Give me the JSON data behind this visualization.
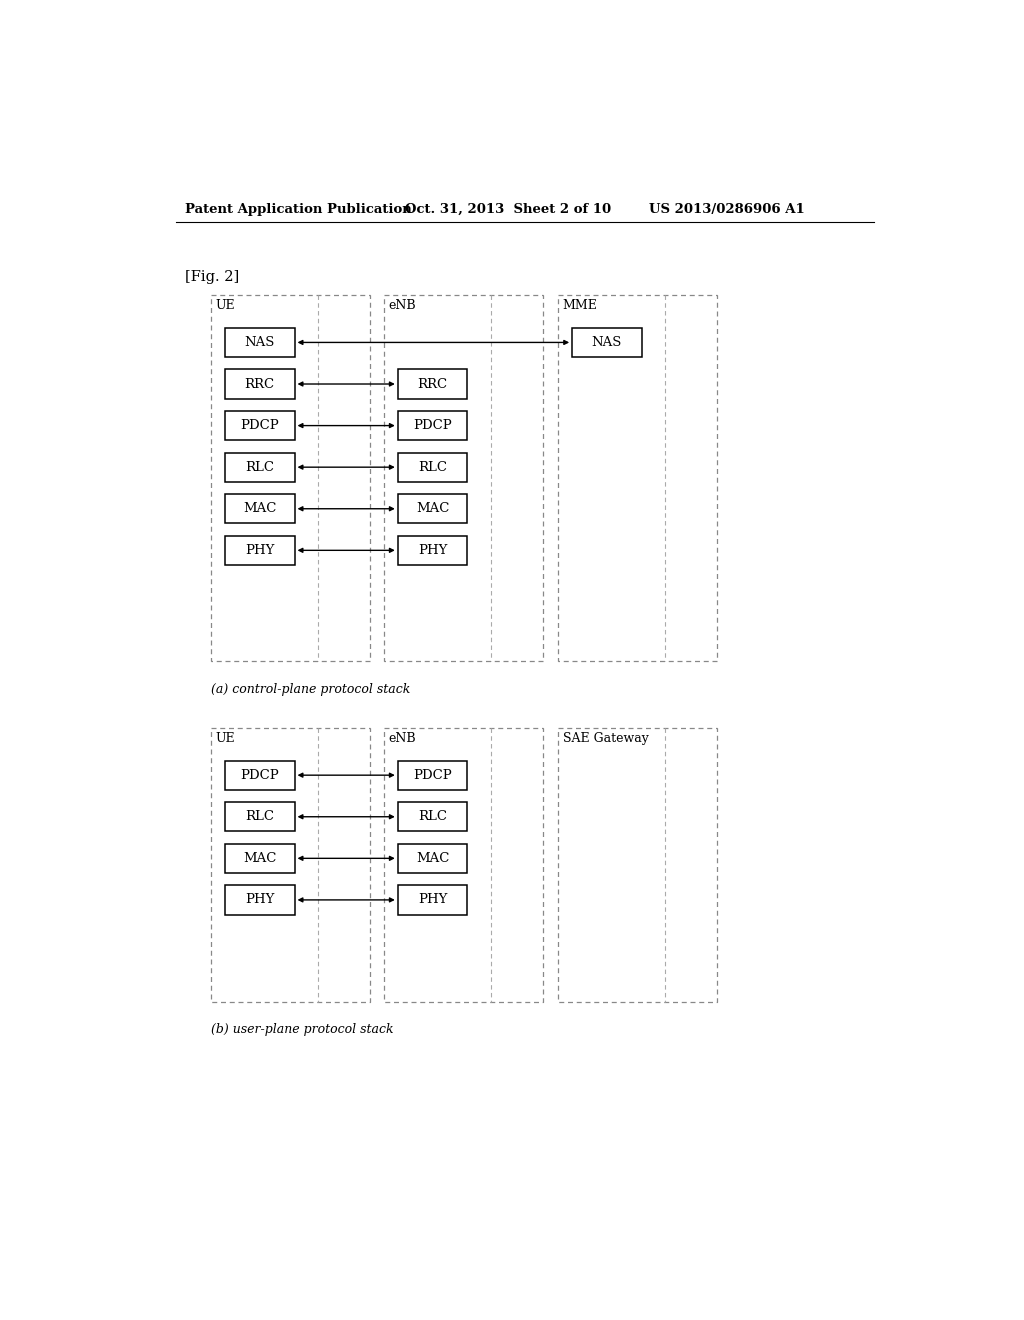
{
  "header_left": "Patent Application Publication",
  "header_mid": "Oct. 31, 2013  Sheet 2 of 10",
  "header_right": "US 2013/0286906 A1",
  "fig_label": "[Fig. 2]",
  "diagram_a": {
    "caption": "(a) control-plane protocol stack",
    "ue_label": "UE",
    "enb_label": "eNB",
    "third_label": "MME",
    "ue_boxes": [
      "NAS",
      "RRC",
      "PDCP",
      "RLC",
      "MAC",
      "PHY"
    ],
    "enb_boxes": [
      "RRC",
      "PDCP",
      "RLC",
      "MAC",
      "PHY"
    ],
    "third_boxes": [
      "NAS"
    ]
  },
  "diagram_b": {
    "caption": "(b) user-plane protocol stack",
    "ue_label": "UE",
    "enb_label": "eNB",
    "third_label": "SAE Gateway",
    "ue_boxes": [
      "PDCP",
      "RLC",
      "MAC",
      "PHY"
    ],
    "enb_boxes": [
      "PDCP",
      "RLC",
      "MAC",
      "PHY"
    ],
    "third_boxes": []
  }
}
